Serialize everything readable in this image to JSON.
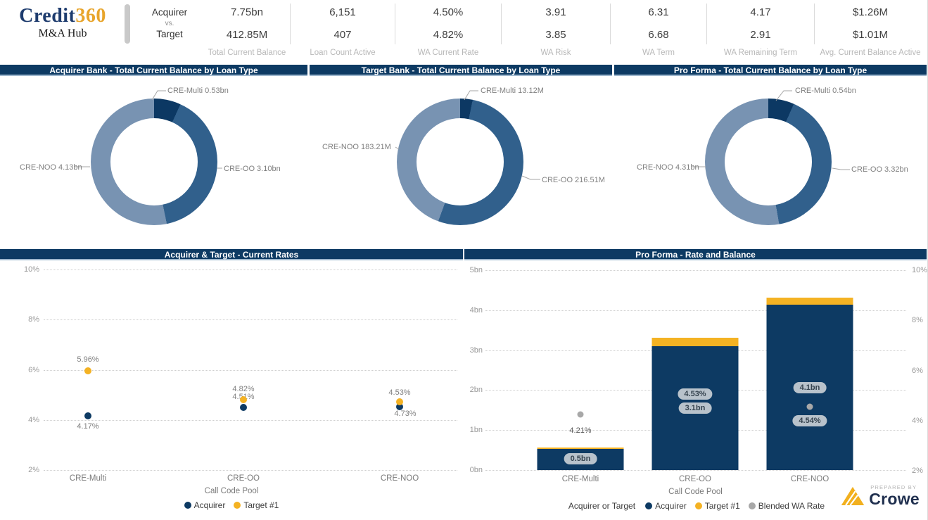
{
  "brand": {
    "logo_credit": "Credit",
    "logo_360": "360",
    "subtitle": "M&A Hub",
    "credit_color": "#1E3C6E",
    "gold_color": "#E8A52C"
  },
  "header": {
    "row_labels": {
      "top": "Acquirer",
      "mid": "vs.",
      "bottom": "Target"
    },
    "kpis": [
      {
        "label": "Total Current Balance",
        "acquirer": "7.75bn",
        "target": "412.85M"
      },
      {
        "label": "Loan Count Active",
        "acquirer": "6,151",
        "target": "407"
      },
      {
        "label": "WA Current Rate",
        "acquirer": "4.50%",
        "target": "4.82%"
      },
      {
        "label": "WA Risk",
        "acquirer": "3.91",
        "target": "3.85"
      },
      {
        "label": "WA Term",
        "acquirer": "6.31",
        "target": "6.68"
      },
      {
        "label": "WA Remaining Term",
        "acquirer": "4.17",
        "target": "2.91"
      },
      {
        "label": "Avg. Current Balance Active",
        "acquirer": "$1.26M",
        "target": "$1.01M"
      }
    ]
  },
  "colors": {
    "navy": "#0D3A63",
    "gold": "#F4B223",
    "gray_dot": "#A8A8A8",
    "donut_multi": "#0C3863",
    "donut_oo": "#31608C",
    "donut_noo": "#7893B2"
  },
  "chart_data": [
    {
      "type": "pie",
      "title": "Acquirer Bank - Total Current Balance by Loan Type",
      "labels": [
        "CRE-Multi",
        "CRE-OO",
        "CRE-NOO"
      ],
      "values": [
        0.53,
        3.1,
        4.13
      ],
      "unit": "bn",
      "callouts": [
        "CRE-Multi 0.53bn",
        "CRE-OO 3.10bn",
        "CRE-NOO 4.13bn"
      ]
    },
    {
      "type": "pie",
      "title": "Target Bank - Total Current Balance by Loan Type",
      "labels": [
        "CRE-Multi",
        "CRE-OO",
        "CRE-NOO"
      ],
      "values": [
        13.12,
        216.51,
        183.21
      ],
      "unit": "M",
      "callouts": [
        "CRE-Multi 13.12M",
        "CRE-OO 216.51M",
        "CRE-NOO 183.21M"
      ]
    },
    {
      "type": "pie",
      "title": "Pro Forma - Total Current Balance by Loan Type",
      "labels": [
        "CRE-Multi",
        "CRE-OO",
        "CRE-NOO"
      ],
      "values": [
        0.54,
        3.32,
        4.31
      ],
      "unit": "bn",
      "callouts": [
        "CRE-Multi 0.54bn",
        "CRE-OO 3.32bn",
        "CRE-NOO 4.31bn"
      ]
    },
    {
      "type": "scatter",
      "title": "Acquirer & Target - Current Rates",
      "categories": [
        "CRE-Multi",
        "CRE-OO",
        "CRE-NOO"
      ],
      "xlabel": "Call Code Pool",
      "ylim": [
        2,
        10
      ],
      "yticks": [
        "10%",
        "8%",
        "6%",
        "4%",
        "2%"
      ],
      "grid": true,
      "legend_position": "bottom",
      "series": [
        {
          "name": "Acquirer",
          "color": "#0D3A63",
          "values": [
            4.17,
            4.51,
            4.53
          ],
          "labels": [
            "4.17%",
            "4.51%",
            "4.53%"
          ]
        },
        {
          "name": "Target #1",
          "color": "#F4B223",
          "values": [
            5.96,
            4.82,
            4.73
          ],
          "labels": [
            "5.96%",
            "4.82%",
            "4.73%"
          ]
        }
      ]
    },
    {
      "type": "bar",
      "title": "Pro Forma - Rate and Balance",
      "categories": [
        "CRE-Multi",
        "CRE-OO",
        "CRE-NOO"
      ],
      "xlabel": "Call Code Pool",
      "left_axis": {
        "ticks": [
          "5bn",
          "4bn",
          "3bn",
          "2bn",
          "1bn",
          "0bn"
        ],
        "lim": [
          0,
          5
        ]
      },
      "right_axis": {
        "ticks": [
          "10%",
          "8%",
          "6%",
          "4%",
          "2%"
        ],
        "lim": [
          2,
          10
        ]
      },
      "legend_title": "Acquirer or Target",
      "grid": true,
      "legend_position": "bottom",
      "series": [
        {
          "name": "Acquirer",
          "color": "#0D3A63",
          "role": "bar",
          "values": [
            0.53,
            3.1,
            4.13
          ]
        },
        {
          "name": "Target #1",
          "color": "#F4B223",
          "role": "bar",
          "values": [
            0.013,
            0.217,
            0.183
          ]
        },
        {
          "name": "Blended WA Rate",
          "color": "#A8A8A8",
          "role": "dot",
          "values": [
            4.21,
            4.53,
            4.54
          ]
        }
      ],
      "bar_labels": [
        "0.5bn",
        "3.1bn",
        "4.1bn"
      ],
      "rate_labels": [
        "4.21%",
        "4.53%",
        "4.54%"
      ]
    }
  ],
  "footer": {
    "prepared_by": "PREPARED BY",
    "brand": "Crowe"
  }
}
